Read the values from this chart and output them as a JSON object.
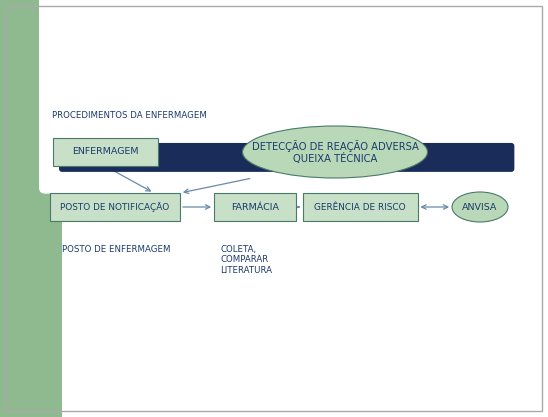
{
  "bg_outer": "#ffffff",
  "bg_sidebar": "#8fba8f",
  "dark_bar_color": "#1a2d5a",
  "box_fill": "#c8dfc8",
  "box_edge": "#4a7a6a",
  "ellipse_fill": "#b8d8b8",
  "text_color": "#1a3a6a",
  "arrow_color": "#6a8aaa",
  "label_proc": "PROCEDIMENTOS DA ENFERMAGEM",
  "label_enfermagem": "ENFERMAGEM",
  "label_deteccao": "DETECÇÃO DE REAÇÃO ADVERSA\nQUEIXA TÉCNICA",
  "label_posto_not": "POSTO DE NOTIFICAÇÃO",
  "label_farmacia": "FARMÁCIA",
  "label_gerencia": "GERÊNCIA DE RISCO",
  "label_anvisa": "ANVISA",
  "label_posto_enf": "POSTO DE ENFERMAGEM",
  "label_coleta": "COLETA,\nCOMPARAR\nLITERATURA",
  "fig_w": 5.48,
  "fig_h": 4.17,
  "dpi": 100
}
